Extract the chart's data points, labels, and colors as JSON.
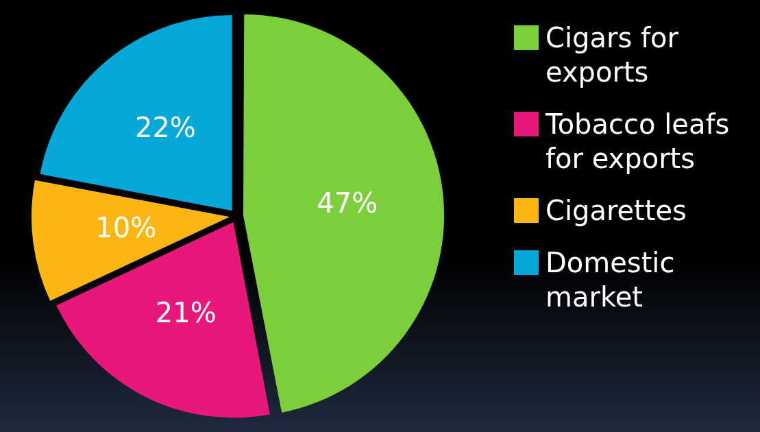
{
  "chart_data": {
    "type": "pie",
    "categories": [
      "Cigars for exports",
      "Tobacco leafs for exports",
      "Cigarettes",
      "Domestic market"
    ],
    "values": [
      47,
      21,
      10,
      22
    ],
    "colors": [
      "#7dce3b",
      "#e8187a",
      "#fbb613",
      "#05a8d9"
    ],
    "value_labels": [
      "47%",
      "21%",
      "10%",
      "22%"
    ],
    "legend": "right"
  }
}
